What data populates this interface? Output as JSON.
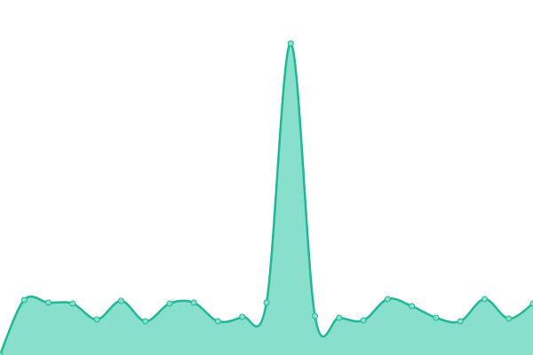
{
  "chart_data": {
    "type": "area",
    "values": [
      0,
      62,
      59,
      58,
      40,
      61,
      38,
      58,
      59,
      38,
      43,
      59,
      351,
      44,
      42,
      39,
      63,
      55,
      42,
      38,
      63,
      41,
      58
    ],
    "color": "#1fb896",
    "fill": "#88e0cc",
    "ylim": [
      0,
      400
    ]
  }
}
